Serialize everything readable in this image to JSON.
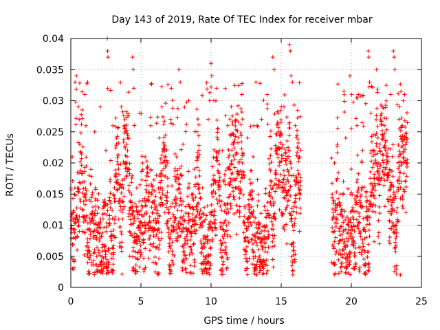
{
  "chart_data": {
    "type": "scatter",
    "title": "Day 143 of 2019, Rate Of TEC Index for receiver mbar",
    "xlabel": "GPS time / hours",
    "ylabel": "ROTI / TECUs",
    "xlim": [
      0,
      25
    ],
    "ylim": [
      0,
      0.04
    ],
    "x_ticks": [
      0,
      5,
      10,
      15,
      20,
      25
    ],
    "x_tick_labels": [
      "0",
      "5",
      "10",
      "15",
      "20",
      "25"
    ],
    "y_ticks": [
      0,
      0.005,
      0.01,
      0.015,
      0.02,
      0.025,
      0.03,
      0.035,
      0.04
    ],
    "y_tick_labels": [
      "0",
      "0.005",
      "0.01",
      "0.015",
      "0.02",
      "0.025",
      "0.03",
      "0.035",
      "0.04"
    ],
    "grid": true,
    "marker": "plus",
    "marker_color": "#ff0000",
    "data_coverage": [
      {
        "start_hour": 0.0,
        "end_hour": 16.4
      },
      {
        "start_hour": 18.6,
        "end_hour": 24.0
      }
    ],
    "series": [
      {
        "name": "ROTI",
        "points": [
          [
            0.0,
            0.016
          ],
          [
            0.1,
            0.021
          ],
          [
            0.2,
            0.012
          ],
          [
            0.3,
            0.033
          ],
          [
            0.4,
            0.034
          ],
          [
            0.45,
            0.006
          ],
          [
            0.6,
            0.027
          ],
          [
            0.8,
            0.009
          ],
          [
            1.0,
            0.031
          ],
          [
            1.2,
            0.033
          ],
          [
            1.3,
            0.018
          ],
          [
            1.5,
            0.004
          ],
          [
            1.7,
            0.025
          ],
          [
            1.9,
            0.014
          ],
          [
            2.1,
            0.029
          ],
          [
            2.3,
            0.011
          ],
          [
            2.5,
            0.022
          ],
          [
            2.6,
            0.04
          ],
          [
            2.62,
            0.038
          ],
          [
            2.65,
            0.037
          ],
          [
            2.8,
            0.017
          ],
          [
            3.0,
            0.026
          ],
          [
            3.2,
            0.008
          ],
          [
            3.4,
            0.019
          ],
          [
            3.6,
            0.029
          ],
          [
            3.8,
            0.013
          ],
          [
            4.0,
            0.023
          ],
          [
            4.2,
            0.005
          ],
          [
            4.4,
            0.037
          ],
          [
            4.45,
            0.035
          ],
          [
            4.5,
            0.032
          ],
          [
            4.7,
            0.016
          ],
          [
            4.9,
            0.028
          ],
          [
            5.1,
            0.01
          ],
          [
            5.3,
            0.021
          ],
          [
            5.5,
            0.014
          ],
          [
            5.7,
            0.026
          ],
          [
            5.9,
            0.007
          ],
          [
            6.1,
            0.018
          ],
          [
            6.3,
            0.024
          ],
          [
            6.5,
            0.029
          ],
          [
            6.7,
            0.012
          ],
          [
            6.9,
            0.02
          ],
          [
            7.1,
            0.027
          ],
          [
            7.3,
            0.009
          ],
          [
            7.5,
            0.017
          ],
          [
            7.7,
            0.035
          ],
          [
            7.8,
            0.033
          ],
          [
            8.0,
            0.023
          ],
          [
            8.2,
            0.013
          ],
          [
            8.4,
            0.03
          ],
          [
            8.6,
            0.006
          ],
          [
            8.8,
            0.019
          ],
          [
            9.0,
            0.025
          ],
          [
            9.2,
            0.011
          ],
          [
            9.4,
            0.016
          ],
          [
            9.6,
            0.003
          ],
          [
            9.8,
            0.027
          ],
          [
            9.9,
            0.03
          ],
          [
            10.0,
            0.036
          ],
          [
            10.05,
            0.034
          ],
          [
            10.2,
            0.018
          ],
          [
            10.4,
            0.032
          ],
          [
            10.6,
            0.014
          ],
          [
            10.8,
            0.022
          ],
          [
            11.0,
            0.009
          ],
          [
            11.2,
            0.026
          ],
          [
            11.4,
            0.017
          ],
          [
            11.6,
            0.023
          ],
          [
            11.8,
            0.012
          ],
          [
            12.0,
            0.02
          ],
          [
            12.2,
            0.031
          ],
          [
            12.4,
            0.01
          ],
          [
            12.6,
            0.024
          ],
          [
            12.8,
            0.015
          ],
          [
            13.0,
            0.021
          ],
          [
            13.2,
            0.033
          ],
          [
            13.4,
            0.008
          ],
          [
            13.6,
            0.027
          ],
          [
            13.8,
            0.013
          ],
          [
            14.0,
            0.031
          ],
          [
            14.2,
            0.019
          ],
          [
            14.4,
            0.037
          ],
          [
            14.5,
            0.035
          ],
          [
            14.6,
            0.011
          ],
          [
            14.8,
            0.025
          ],
          [
            15.0,
            0.016
          ],
          [
            15.2,
            0.029
          ],
          [
            15.4,
            0.007
          ],
          [
            15.5,
            0.022
          ],
          [
            15.6,
            0.039
          ],
          [
            15.65,
            0.038
          ],
          [
            15.7,
            0.034
          ],
          [
            15.8,
            0.033
          ],
          [
            15.9,
            0.018
          ],
          [
            16.0,
            0.026
          ],
          [
            16.1,
            0.012
          ],
          [
            16.2,
            0.021
          ],
          [
            16.3,
            0.009
          ],
          [
            16.35,
            0.015
          ],
          [
            18.6,
            0.004
          ],
          [
            18.7,
            0.012
          ],
          [
            18.8,
            0.02
          ],
          [
            18.9,
            0.008
          ],
          [
            19.0,
            0.023
          ],
          [
            19.2,
            0.015
          ],
          [
            19.4,
            0.006
          ],
          [
            19.6,
            0.024
          ],
          [
            19.8,
            0.011
          ],
          [
            19.9,
            0.034
          ],
          [
            20.0,
            0.019
          ],
          [
            20.2,
            0.003
          ],
          [
            20.4,
            0.026
          ],
          [
            20.5,
            0.031
          ],
          [
            20.6,
            0.014
          ],
          [
            20.8,
            0.022
          ],
          [
            21.0,
            0.009
          ],
          [
            21.2,
            0.038
          ],
          [
            21.25,
            0.037
          ],
          [
            21.3,
            0.033
          ],
          [
            21.4,
            0.028
          ],
          [
            21.6,
            0.016
          ],
          [
            21.8,
            0.035
          ],
          [
            21.9,
            0.024
          ],
          [
            22.0,
            0.007
          ],
          [
            22.2,
            0.029
          ],
          [
            22.4,
            0.013
          ],
          [
            22.6,
            0.021
          ],
          [
            22.8,
            0.031
          ],
          [
            23.0,
            0.038
          ],
          [
            23.05,
            0.037
          ],
          [
            23.1,
            0.035
          ],
          [
            23.2,
            0.01
          ],
          [
            23.4,
            0.027
          ],
          [
            23.5,
            0.002
          ],
          [
            23.6,
            0.017
          ],
          [
            23.7,
            0.03
          ],
          [
            23.8,
            0.031
          ],
          [
            23.9,
            0.012
          ],
          [
            24.0,
            0.02
          ]
        ],
        "dense_band": {
          "y_low": 0.004,
          "y_high": 0.025,
          "median": 0.014
        }
      }
    ]
  }
}
